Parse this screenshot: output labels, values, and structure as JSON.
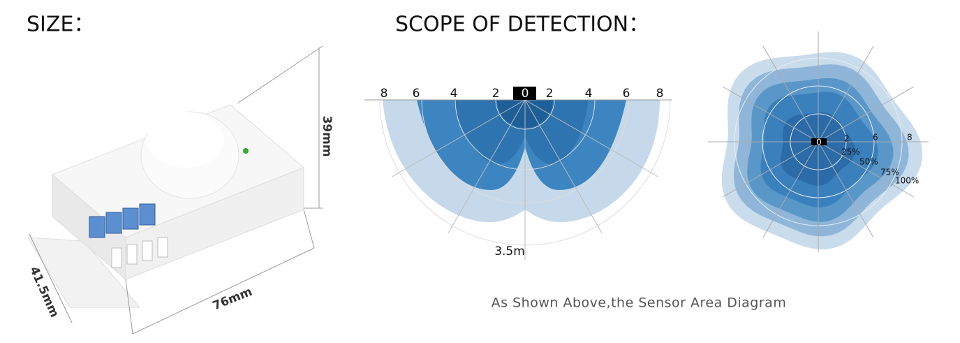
{
  "size": {
    "title": "SIZE：",
    "dimensions": {
      "height": "39mm",
      "depth": "41.5mm",
      "width": "76mm"
    }
  },
  "detection": {
    "title": "SCOPE OF DETECTION：",
    "side_view": {
      "scale": [
        "8",
        "6",
        "4",
        "2",
        "0",
        "2",
        "4",
        "6",
        "8"
      ],
      "range": "3.5m"
    },
    "top_view": {
      "center": "0",
      "distances": [
        "2",
        "6",
        "8"
      ],
      "levels": [
        "25%",
        "50%",
        "75%",
        "100%"
      ]
    },
    "caption": "As Shown Above,the Sensor Area Diagram"
  }
}
